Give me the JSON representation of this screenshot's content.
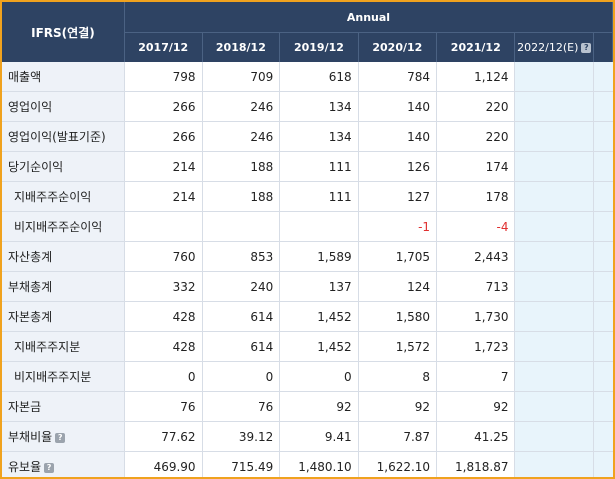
{
  "table": {
    "header_label": "IFRS(연결)",
    "group_label": "Annual",
    "periods": [
      "2017/12",
      "2018/12",
      "2019/12",
      "2020/12",
      "2021/12"
    ],
    "estimate_period": "2022/12(E)",
    "rows": [
      {
        "label": "매출액",
        "values": [
          "798",
          "709",
          "618",
          "784",
          "1,124"
        ]
      },
      {
        "label": "영업이익",
        "values": [
          "266",
          "246",
          "134",
          "140",
          "220"
        ]
      },
      {
        "label": "영업이익(발표기준)",
        "values": [
          "266",
          "246",
          "134",
          "140",
          "220"
        ]
      },
      {
        "label": "당기순이익",
        "values": [
          "214",
          "188",
          "111",
          "126",
          "174"
        ]
      },
      {
        "label": "지배주주순이익",
        "values": [
          "214",
          "188",
          "111",
          "127",
          "178"
        ]
      },
      {
        "label": "비지배주주순이익",
        "values": [
          "",
          "",
          "",
          "-1",
          "-4"
        ]
      },
      {
        "label": "자산총계",
        "values": [
          "760",
          "853",
          "1,589",
          "1,705",
          "2,443"
        ]
      },
      {
        "label": "부채총계",
        "values": [
          "332",
          "240",
          "137",
          "124",
          "713"
        ]
      },
      {
        "label": "자본총계",
        "values": [
          "428",
          "614",
          "1,452",
          "1,580",
          "1,730"
        ]
      },
      {
        "label": "지배주주지분",
        "values": [
          "428",
          "614",
          "1,452",
          "1,572",
          "1,723"
        ]
      },
      {
        "label": "비지배주주지분",
        "values": [
          "0",
          "0",
          "0",
          "8",
          "7"
        ]
      },
      {
        "label": "자본금",
        "values": [
          "76",
          "76",
          "92",
          "92",
          "92"
        ]
      },
      {
        "label": "부채비율",
        "values": [
          "77.62",
          "39.12",
          "9.41",
          "7.87",
          "41.25"
        ]
      },
      {
        "label": "유보율",
        "values": [
          "469.90",
          "715.49",
          "1,480.10",
          "1,622.10",
          "1,818.87"
        ]
      }
    ]
  },
  "icons": {
    "help": "help-icon"
  },
  "colors": {
    "header_bg": "#2e4363",
    "negative": "#e03030",
    "estimate_bg": "#e8f4fb",
    "frame": "#f0a21e"
  }
}
